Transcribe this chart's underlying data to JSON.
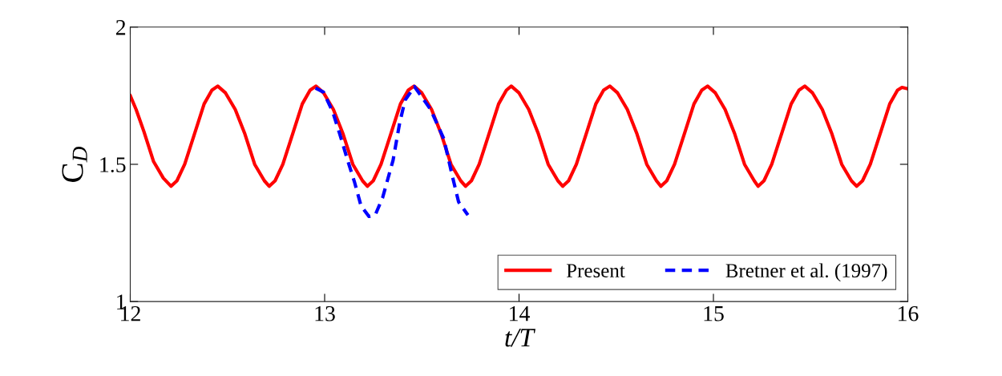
{
  "chart_data": {
    "type": "line",
    "xlabel": "t/T",
    "ylabel": "C$_{D}$",
    "xlim": [
      12,
      16
    ],
    "ylim": [
      1,
      2
    ],
    "xticks": [
      12,
      13,
      14,
      15,
      16
    ],
    "yticks": [
      1,
      1.5,
      2
    ],
    "grid": false,
    "legend": "bottom right",
    "marker": "none",
    "series": [
      {
        "name": "Present",
        "color": "#ff0000",
        "line_style": "solid",
        "x": [
          12.0,
          12.03,
          12.07,
          12.12,
          12.17,
          12.21,
          12.24,
          12.28,
          12.33,
          12.38,
          12.42,
          12.45,
          12.49,
          12.54,
          12.59,
          12.64,
          12.69,
          12.715,
          12.745,
          12.785,
          12.835,
          12.885,
          12.925,
          12.955,
          12.995,
          13.045,
          13.095,
          13.145,
          13.195,
          13.22,
          13.25,
          13.29,
          13.34,
          13.39,
          13.43,
          13.46,
          13.5,
          13.55,
          13.6,
          13.65,
          13.7,
          13.725,
          13.755,
          13.795,
          13.845,
          13.895,
          13.935,
          13.96,
          14.0,
          14.05,
          14.1,
          14.15,
          14.2,
          14.225,
          14.255,
          14.295,
          14.345,
          14.395,
          14.435,
          14.467,
          14.507,
          14.557,
          14.607,
          14.657,
          14.707,
          14.73,
          14.76,
          14.8,
          14.85,
          14.9,
          14.94,
          14.97,
          15.01,
          15.06,
          15.11,
          15.16,
          15.21,
          15.23,
          15.26,
          15.3,
          15.35,
          15.4,
          15.44,
          15.47,
          15.51,
          15.56,
          15.61,
          15.66,
          15.71,
          15.737,
          15.767,
          15.807,
          15.857,
          15.907,
          15.947,
          15.97,
          16.0
        ],
        "values": [
          1.75,
          1.7,
          1.62,
          1.51,
          1.45,
          1.42,
          1.44,
          1.5,
          1.61,
          1.72,
          1.77,
          1.785,
          1.76,
          1.7,
          1.61,
          1.5,
          1.44,
          1.42,
          1.44,
          1.5,
          1.61,
          1.72,
          1.77,
          1.785,
          1.76,
          1.7,
          1.61,
          1.5,
          1.44,
          1.42,
          1.44,
          1.5,
          1.61,
          1.72,
          1.77,
          1.785,
          1.76,
          1.7,
          1.61,
          1.5,
          1.44,
          1.42,
          1.44,
          1.5,
          1.61,
          1.72,
          1.77,
          1.785,
          1.76,
          1.7,
          1.61,
          1.5,
          1.44,
          1.42,
          1.44,
          1.5,
          1.61,
          1.72,
          1.77,
          1.785,
          1.76,
          1.7,
          1.61,
          1.5,
          1.44,
          1.42,
          1.44,
          1.5,
          1.61,
          1.72,
          1.77,
          1.785,
          1.76,
          1.7,
          1.61,
          1.5,
          1.44,
          1.42,
          1.44,
          1.5,
          1.61,
          1.72,
          1.77,
          1.785,
          1.76,
          1.7,
          1.61,
          1.5,
          1.44,
          1.42,
          1.44,
          1.5,
          1.61,
          1.72,
          1.77,
          1.78,
          1.775
        ]
      },
      {
        "name": "Bretner et al. (1997)",
        "color": "#0000ff",
        "line_style": "dashed",
        "x": [
          12.953,
          12.994,
          13.042,
          13.077,
          13.118,
          13.153,
          13.187,
          13.228,
          13.26,
          13.298,
          13.352,
          13.386,
          13.414,
          13.462,
          13.545,
          13.613,
          13.654,
          13.689,
          13.737
        ],
        "values": [
          1.778,
          1.763,
          1.69,
          1.612,
          1.515,
          1.437,
          1.349,
          1.31,
          1.315,
          1.378,
          1.515,
          1.651,
          1.734,
          1.783,
          1.7,
          1.593,
          1.466,
          1.363,
          1.315
        ]
      }
    ]
  }
}
